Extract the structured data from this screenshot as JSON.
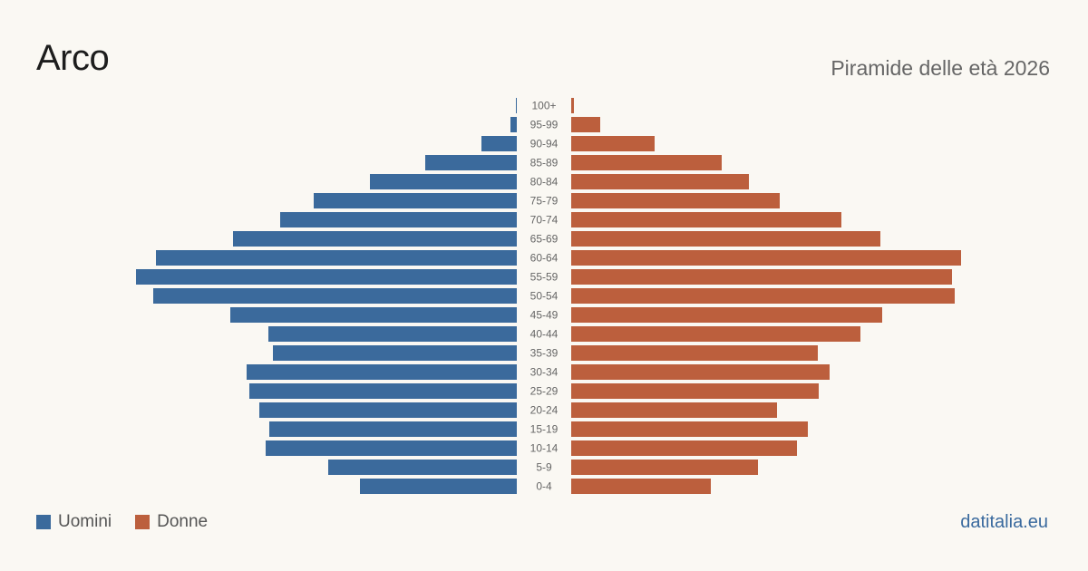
{
  "header": {
    "title": "Arco",
    "subtitle": "Piramide delle età 2026"
  },
  "legend": {
    "men_label": "Uomini",
    "women_label": "Donne"
  },
  "footer": {
    "source": "datitalia.eu"
  },
  "colors": {
    "men": "#3b6a9c",
    "women": "#bc5f3d"
  },
  "chart_data": {
    "type": "bar",
    "orientation": "horizontal-pyramid",
    "categories": [
      "100+",
      "95-99",
      "90-94",
      "85-89",
      "80-84",
      "75-79",
      "70-74",
      "65-69",
      "60-64",
      "55-59",
      "50-54",
      "45-49",
      "40-44",
      "35-39",
      "30-34",
      "25-29",
      "20-24",
      "15-19",
      "10-14",
      "5-9",
      "0-4"
    ],
    "series": [
      {
        "name": "Uomini",
        "values": [
          1,
          7,
          39,
          101,
          162,
          224,
          261,
          313,
          398,
          420,
          401,
          316,
          274,
          269,
          298,
          295,
          284,
          273,
          277,
          208,
          173
        ]
      },
      {
        "name": "Donne",
        "values": [
          3,
          32,
          92,
          166,
          196,
          230,
          298,
          341,
          430,
          420,
          423,
          343,
          319,
          272,
          285,
          273,
          227,
          261,
          249,
          206,
          154
        ]
      }
    ],
    "title": "Piramide delle età 2026",
    "xlim": [
      0,
      430
    ]
  }
}
